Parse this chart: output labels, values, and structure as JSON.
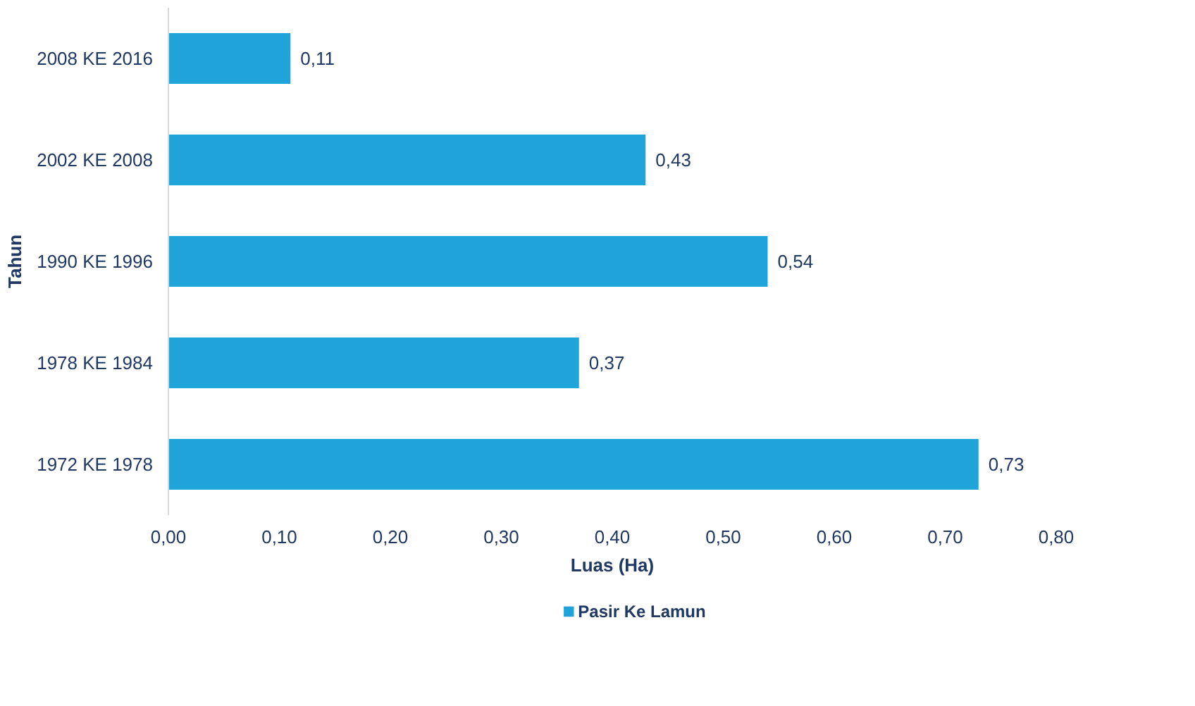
{
  "chart_data": {
    "type": "bar",
    "orientation": "horizontal",
    "xlabel": "Luas (Ha)",
    "ylabel": "Tahun",
    "categories": [
      "2008 KE 2016",
      "2002 KE 2008",
      "1990 KE 1996",
      "1978 KE 1984",
      "1972 KE 1978"
    ],
    "series": [
      {
        "name": "Pasir Ke Lamun",
        "color": "#1fa3d8",
        "values": [
          0.11,
          0.43,
          0.54,
          0.37,
          0.73
        ],
        "value_labels": [
          "0,11",
          "0,43",
          "0,54",
          "0,37",
          "0,73"
        ]
      }
    ],
    "xlim": [
      0,
      0.8
    ],
    "xticks": [
      {
        "value": 0,
        "label": "0,00"
      },
      {
        "value": 0.1,
        "label": "0,10"
      },
      {
        "value": 0.2,
        "label": "0,20"
      },
      {
        "value": 0.3,
        "label": "0,30"
      },
      {
        "value": 0.4,
        "label": "0,40"
      },
      {
        "value": 0.5,
        "label": "0,50"
      },
      {
        "value": 0.6,
        "label": "0,60"
      },
      {
        "value": 0.7,
        "label": "0,70"
      },
      {
        "value": 0.8,
        "label": "0,80"
      }
    ],
    "grid": false,
    "legend": "bottom"
  }
}
